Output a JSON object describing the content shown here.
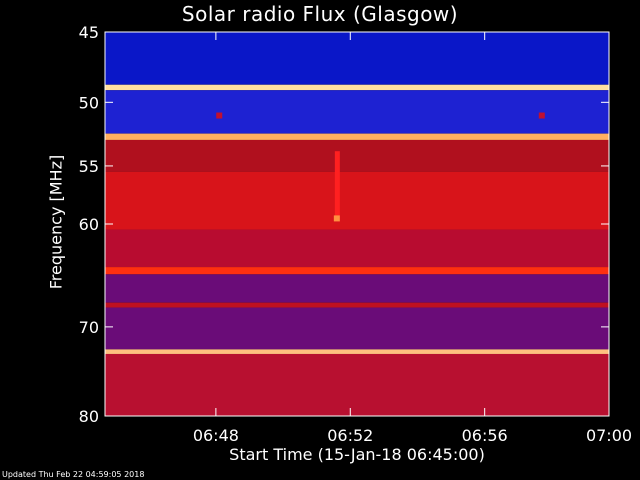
{
  "chart_data": {
    "type": "heatmap",
    "title": "Solar radio Flux (Glasgow)",
    "xlabel": "Start Time (15-Jan-18 06:45:00)",
    "ylabel": "Frequency [MHz]",
    "footer": "Updated Thu Feb 22 04:59:05 2018",
    "x_range_minutes": [
      0,
      15
    ],
    "x_ticks": [
      {
        "minute": 3.3,
        "label": "06:48"
      },
      {
        "minute": 7.3,
        "label": "06:52"
      },
      {
        "minute": 11.3,
        "label": "06:56"
      },
      {
        "minute": 15,
        "label": "07:00"
      }
    ],
    "y_range_mhz": [
      45,
      80
    ],
    "y_scale": "log",
    "y_ticks": [
      {
        "value": 45,
        "label": "45"
      },
      {
        "value": 50,
        "label": "50"
      },
      {
        "value": 55,
        "label": "55"
      },
      {
        "value": 60,
        "label": "60"
      },
      {
        "value": 70,
        "label": "70"
      },
      {
        "value": 80,
        "label": "80"
      }
    ],
    "colormap": "blue-red-yellow-white",
    "spectral_bands_mhz": [
      {
        "from": 45.0,
        "to": 48.7,
        "color": "#0a17c8"
      },
      {
        "from": 48.7,
        "to": 49.1,
        "color": "#ffe0a0"
      },
      {
        "from": 49.1,
        "to": 52.4,
        "color": "#1e22d2"
      },
      {
        "from": 52.4,
        "to": 52.9,
        "color": "#ffb060"
      },
      {
        "from": 52.9,
        "to": 55.5,
        "color": "#b0101e"
      },
      {
        "from": 55.5,
        "to": 60.5,
        "color": "#d8141a"
      },
      {
        "from": 60.5,
        "to": 64.0,
        "color": "#b80c30"
      },
      {
        "from": 64.0,
        "to": 64.7,
        "color": "#ff3010"
      },
      {
        "from": 64.7,
        "to": 67.5,
        "color": "#6a0c78"
      },
      {
        "from": 67.5,
        "to": 68.0,
        "color": "#c01020"
      },
      {
        "from": 68.0,
        "to": 72.4,
        "color": "#6a0c78"
      },
      {
        "from": 72.4,
        "to": 72.9,
        "color": "#ffc080"
      },
      {
        "from": 72.9,
        "to": 80.0,
        "color": "#b81030"
      }
    ],
    "features": [
      {
        "type": "vertical-streak",
        "minute": 6.9,
        "from_mhz": 53.8,
        "to_mhz": 59.3,
        "color": "#ff2020"
      },
      {
        "type": "spot",
        "minute": 6.9,
        "mhz": 59.5,
        "color": "#ff9040"
      },
      {
        "type": "spot",
        "minute": 3.4,
        "mhz": 51.0,
        "color": "#c01030"
      },
      {
        "type": "spot",
        "minute": 13.0,
        "mhz": 51.0,
        "color": "#c01030"
      }
    ]
  }
}
